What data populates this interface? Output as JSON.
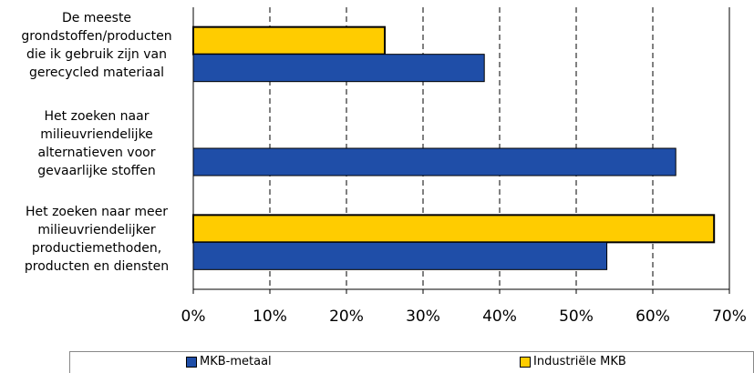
{
  "chart_data": {
    "type": "bar",
    "orientation": "horizontal",
    "categories": [
      "De meeste grondstoffen/producten die ik gebruik zijn van gerecycled materiaal",
      "Het zoeken naar milieuvriendelijke alternatieven voor gevaarlijke stoffen",
      "Het zoeken naar meer milieuvriendelijker productiemethoden, producten en diensten"
    ],
    "category_labels": [
      "De meeste\ngrondstoffen/producten\ndie ik gebruik zijn van\ngerecycled materiaal",
      "Het zoeken naar\nmilieuvriendelijke\nalternatieven voor\ngevaarlijke stoffen",
      "Het zoeken naar meer\nmilieuvriendelijker\nproductiemethoden,\nproducten en diensten"
    ],
    "series": [
      {
        "name": "MKB-metaal",
        "color": "#1f4ea8",
        "values": [
          38,
          63,
          54
        ]
      },
      {
        "name": "Industriële MKB",
        "color": "#ffcc00",
        "values": [
          25,
          null,
          68
        ]
      }
    ],
    "xlim": [
      0,
      70
    ],
    "xticks": [
      0,
      10,
      20,
      30,
      40,
      50,
      60,
      70
    ],
    "tick_format": "%",
    "grid": "vertical dashed",
    "legend_position": "bottom"
  }
}
